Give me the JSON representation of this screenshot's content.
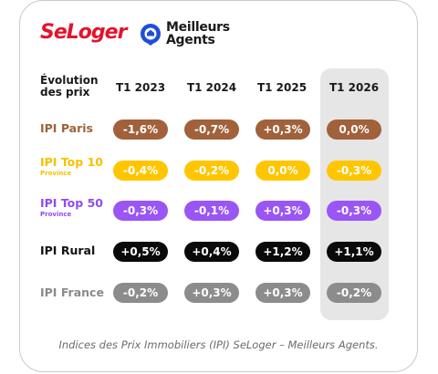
{
  "brand": {
    "seloger": "SeLoger",
    "ma_line1": "Meilleurs",
    "ma_line2": "Agents",
    "seloger_color": "#e3142c",
    "ma_icon": "house-pin-icon",
    "ma_color": "#1f4fd8"
  },
  "table": {
    "header_label_line1": "Évolution",
    "header_label_line2": "des prix",
    "columns": [
      "T1 2023",
      "T1 2024",
      "T1 2025",
      "T1 2026"
    ],
    "highlight_column": "T1 2026",
    "rows": [
      {
        "label": "IPI Paris",
        "sub": "",
        "label_color": "#a0613b",
        "pill_color": "#a0613b",
        "pill_text_color": "#ffffff",
        "values": [
          "-1,6%",
          "-0,7%",
          "+0,3%",
          "0,0%"
        ]
      },
      {
        "label": "IPI Top 10",
        "sub": "Province",
        "label_color": "#f6c000",
        "pill_color": "#ffc600",
        "pill_text_color": "#ffffff",
        "values": [
          "-0,4%",
          "-0,2%",
          "0,0%",
          "-0,3%"
        ]
      },
      {
        "label": "IPI Top 50",
        "sub": "Province",
        "label_color": "#8f4cf0",
        "pill_color": "#9a55f5",
        "pill_text_color": "#ffffff",
        "values": [
          "-0,3%",
          "-0,1%",
          "+0,3%",
          "-0,3%"
        ]
      },
      {
        "label": "IPI Rural",
        "sub": "",
        "label_color": "#111111",
        "pill_color": "#0a0a0a",
        "pill_text_color": "#ffffff",
        "values": [
          "+0,5%",
          "+0,4%",
          "+1,2%",
          "+1,1%"
        ]
      },
      {
        "label": "IPI France",
        "sub": "",
        "label_color": "#8a8a8a",
        "pill_color": "#8c8c8c",
        "pill_text_color": "#ffffff",
        "values": [
          "-0,2%",
          "+0,3%",
          "+0,3%",
          "-0,2%"
        ]
      }
    ]
  },
  "footnote": "Indices des Prix Immobiliers (IPI) SeLoger – Meilleurs Agents."
}
